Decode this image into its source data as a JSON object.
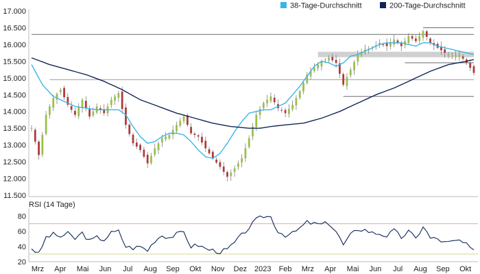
{
  "chart_data": [
    {
      "type": "candlestick",
      "title": "",
      "xlabel": "",
      "ylabel": "",
      "ylim": [
        11500,
        17000
      ],
      "yticks": [
        11500,
        12000,
        12500,
        13000,
        13500,
        14000,
        14500,
        15000,
        15500,
        16000,
        16500,
        17000
      ],
      "ytick_labels": [
        "11.500",
        "12.000",
        "12.500",
        "13.000",
        "13.500",
        "14.000",
        "14.500",
        "15.000",
        "15.500",
        "16.000",
        "16.500",
        "17.000"
      ],
      "x_month_labels": [
        "Mrz",
        "Apr",
        "Mai",
        "Jun",
        "Jul",
        "Aug",
        "Sep",
        "Okt",
        "Nov",
        "Dez",
        "2023",
        "Feb",
        "Mrz",
        "Apr",
        "Mai",
        "Jun",
        "Jul",
        "Aug",
        "Sep",
        "Okt"
      ],
      "legend_position": "top-right",
      "grid": false,
      "close_series": [
        [
          0,
          13500
        ],
        [
          2,
          12700
        ],
        [
          4,
          13900
        ],
        [
          6,
          14400
        ],
        [
          8,
          14650
        ],
        [
          10,
          14200
        ],
        [
          12,
          13900
        ],
        [
          14,
          14350
        ],
        [
          16,
          13850
        ],
        [
          18,
          14150
        ],
        [
          20,
          13950
        ],
        [
          22,
          14350
        ],
        [
          24,
          14550
        ],
        [
          26,
          13600
        ],
        [
          28,
          13050
        ],
        [
          30,
          12850
        ],
        [
          32,
          12450
        ],
        [
          34,
          12900
        ],
        [
          36,
          13200
        ],
        [
          38,
          13300
        ],
        [
          40,
          13600
        ],
        [
          42,
          13850
        ],
        [
          44,
          13350
        ],
        [
          46,
          13250
        ],
        [
          48,
          12900
        ],
        [
          50,
          12600
        ],
        [
          52,
          12350
        ],
        [
          54,
          12050
        ],
        [
          56,
          12300
        ],
        [
          58,
          12600
        ],
        [
          60,
          13200
        ],
        [
          62,
          13900
        ],
        [
          64,
          14250
        ],
        [
          66,
          14450
        ],
        [
          68,
          14100
        ],
        [
          70,
          13950
        ],
        [
          72,
          14200
        ],
        [
          74,
          14600
        ],
        [
          76,
          15100
        ],
        [
          78,
          15300
        ],
        [
          80,
          15500
        ],
        [
          82,
          15600
        ],
        [
          84,
          15450
        ],
        [
          86,
          14800
        ],
        [
          88,
          15250
        ],
        [
          90,
          15700
        ],
        [
          92,
          15850
        ],
        [
          94,
          15900
        ],
        [
          96,
          16050
        ],
        [
          98,
          15950
        ],
        [
          100,
          16150
        ],
        [
          102,
          15950
        ],
        [
          104,
          16250
        ],
        [
          106,
          16100
        ],
        [
          108,
          16400
        ],
        [
          110,
          16050
        ],
        [
          112,
          15900
        ],
        [
          114,
          15750
        ],
        [
          116,
          15650
        ],
        [
          118,
          15700
        ],
        [
          120,
          15450
        ],
        [
          122,
          15150
        ]
      ],
      "series": [
        {
          "name": "38-Tage-Durchschnitt",
          "color": "#3ab4e6",
          "values": [
            [
              0,
              15400
            ],
            [
              3,
              14800
            ],
            [
              6,
              14450
            ],
            [
              9,
              14300
            ],
            [
              12,
              14150
            ],
            [
              15,
              14100
            ],
            [
              18,
              14050
            ],
            [
              21,
              14050
            ],
            [
              24,
              14050
            ],
            [
              26,
              13900
            ],
            [
              28,
              13550
            ],
            [
              30,
              13250
            ],
            [
              32,
              13050
            ],
            [
              34,
              13100
            ],
            [
              36,
              13250
            ],
            [
              38,
              13350
            ],
            [
              40,
              13350
            ],
            [
              42,
              13300
            ],
            [
              44,
              13100
            ],
            [
              46,
              12850
            ],
            [
              48,
              12650
            ],
            [
              50,
              12600
            ],
            [
              52,
              12750
            ],
            [
              54,
              13050
            ],
            [
              56,
              13400
            ],
            [
              58,
              13700
            ],
            [
              60,
              13950
            ],
            [
              62,
              14000
            ],
            [
              64,
              14050
            ],
            [
              66,
              14050
            ],
            [
              68,
              14150
            ],
            [
              70,
              14250
            ],
            [
              72,
              14500
            ],
            [
              74,
              14750
            ],
            [
              76,
              15050
            ],
            [
              78,
              15350
            ],
            [
              80,
              15500
            ],
            [
              82,
              15450
            ],
            [
              84,
              15350
            ],
            [
              86,
              15450
            ],
            [
              88,
              15650
            ],
            [
              90,
              15700
            ],
            [
              92,
              15800
            ],
            [
              94,
              15900
            ],
            [
              96,
              16000
            ],
            [
              98,
              16050
            ],
            [
              100,
              16050
            ],
            [
              102,
              16050
            ],
            [
              104,
              16000
            ],
            [
              106,
              15950
            ],
            [
              108,
              16050
            ],
            [
              110,
              16050
            ],
            [
              112,
              15950
            ],
            [
              114,
              15900
            ],
            [
              116,
              15850
            ],
            [
              118,
              15800
            ],
            [
              120,
              15750
            ],
            [
              122,
              15700
            ]
          ]
        },
        {
          "name": "200-Tage-Durchschnitt",
          "color": "#0f2557",
          "values": [
            [
              0,
              15600
            ],
            [
              5,
              15400
            ],
            [
              10,
              15250
            ],
            [
              15,
              15100
            ],
            [
              20,
              14900
            ],
            [
              25,
              14650
            ],
            [
              30,
              14350
            ],
            [
              35,
              14150
            ],
            [
              40,
              13950
            ],
            [
              45,
              13800
            ],
            [
              50,
              13650
            ],
            [
              55,
              13550
            ],
            [
              60,
              13500
            ],
            [
              63,
              13500
            ],
            [
              66,
              13550
            ],
            [
              70,
              13600
            ],
            [
              75,
              13650
            ],
            [
              80,
              13800
            ],
            [
              85,
              14000
            ],
            [
              90,
              14250
            ],
            [
              95,
              14500
            ],
            [
              100,
              14700
            ],
            [
              105,
              14950
            ],
            [
              110,
              15200
            ],
            [
              115,
              15400
            ],
            [
              120,
              15500
            ],
            [
              122,
              15550
            ]
          ]
        }
      ],
      "horizontal_lines": [
        {
          "y": 16500,
          "style": "dark",
          "x_from": 108,
          "x_to": 122
        },
        {
          "y": 16300,
          "style": "dark",
          "x_from": 0,
          "x_to": 122
        },
        {
          "y": 15700,
          "style": "band",
          "x_from": 79,
          "x_to": 122
        },
        {
          "y": 15450,
          "style": "dark",
          "x_from": 103,
          "x_to": 122
        },
        {
          "y": 14950,
          "style": "gray",
          "x_from": 5,
          "x_to": 122
        },
        {
          "y": 14450,
          "style": "dark",
          "x_from": 86,
          "x_to": 122
        }
      ]
    },
    {
      "type": "line",
      "title": "RSI (14 Tage)",
      "xlabel": "",
      "ylabel": "",
      "ylim": [
        20,
        85
      ],
      "yticks": [
        20,
        40,
        60,
        80
      ],
      "ytick_labels": [
        "20",
        "40",
        "60",
        "80"
      ],
      "reference_lines": [
        {
          "value": 70,
          "color": "#e8a6a6"
        },
        {
          "value": 30,
          "color": "#d8d690"
        }
      ],
      "series": [
        {
          "name": "",
          "color": "#0f2557",
          "values": [
            [
              0,
              38
            ],
            [
              2,
              30
            ],
            [
              4,
              52
            ],
            [
              6,
              56
            ],
            [
              8,
              53
            ],
            [
              10,
              57
            ],
            [
              12,
              50
            ],
            [
              14,
              58
            ],
            [
              16,
              47
            ],
            [
              18,
              52
            ],
            [
              20,
              49
            ],
            [
              22,
              58
            ],
            [
              24,
              60
            ],
            [
              26,
              40
            ],
            [
              28,
              38
            ],
            [
              30,
              40
            ],
            [
              32,
              35
            ],
            [
              34,
              48
            ],
            [
              36,
              55
            ],
            [
              38,
              52
            ],
            [
              40,
              56
            ],
            [
              42,
              59
            ],
            [
              44,
              40
            ],
            [
              46,
              42
            ],
            [
              48,
              37
            ],
            [
              50,
              35
            ],
            [
              52,
              33
            ],
            [
              54,
              36
            ],
            [
              56,
              45
            ],
            [
              58,
              55
            ],
            [
              60,
              65
            ],
            [
              62,
              75
            ],
            [
              64,
              80
            ],
            [
              66,
              79
            ],
            [
              68,
              60
            ],
            [
              70,
              55
            ],
            [
              72,
              57
            ],
            [
              74,
              64
            ],
            [
              76,
              72
            ],
            [
              78,
              70
            ],
            [
              80,
              69
            ],
            [
              82,
              71
            ],
            [
              84,
              60
            ],
            [
              86,
              42
            ],
            [
              88,
              55
            ],
            [
              90,
              63
            ],
            [
              92,
              62
            ],
            [
              94,
              58
            ],
            [
              96,
              57
            ],
            [
              98,
              54
            ],
            [
              100,
              61
            ],
            [
              102,
              52
            ],
            [
              104,
              60
            ],
            [
              106,
              50
            ],
            [
              108,
              67
            ],
            [
              110,
              51
            ],
            [
              112,
              50
            ],
            [
              114,
              45
            ],
            [
              116,
              46
            ],
            [
              118,
              48
            ],
            [
              120,
              42
            ],
            [
              122,
              33
            ]
          ]
        }
      ]
    }
  ]
}
